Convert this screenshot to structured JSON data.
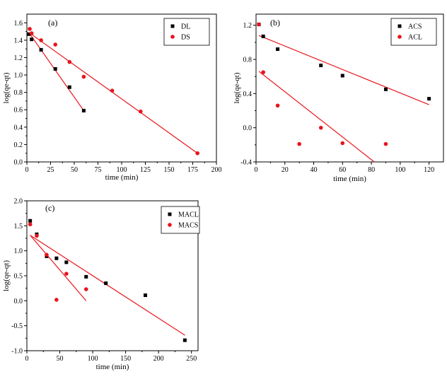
{
  "chart_data": [
    {
      "type": "scatter",
      "panel_label": "(a)",
      "xlabel": "time (min)",
      "ylabel": "log(qe-qt)",
      "xlim": [
        0,
        200
      ],
      "ylim": [
        0,
        1.7
      ],
      "xticks": [
        0,
        25,
        50,
        75,
        100,
        125,
        150,
        175,
        200
      ],
      "yticks": [
        0.0,
        0.2,
        0.4,
        0.6,
        0.8,
        1.0,
        1.2,
        1.4,
        1.6
      ],
      "ytick_labels": [
        "0.0",
        "0.2",
        "0.4",
        "0.6",
        "0.8",
        "1.0",
        "1.2",
        "1.4",
        "1.6"
      ],
      "legend_position": "top-right",
      "series": [
        {
          "name": "DL",
          "marker": "square",
          "color": "#000000",
          "x": [
            2,
            5,
            15,
            30,
            45,
            60
          ],
          "y": [
            1.47,
            1.41,
            1.29,
            1.07,
            0.86,
            0.59
          ],
          "fit": [
            [
              2,
              1.49
            ],
            [
              60,
              0.59
            ]
          ]
        },
        {
          "name": "DS",
          "marker": "circle",
          "color": "#e8141c",
          "x": [
            3,
            5,
            15,
            30,
            45,
            60,
            90,
            120,
            180
          ],
          "y": [
            1.53,
            1.48,
            1.4,
            1.35,
            1.15,
            0.98,
            0.82,
            0.58,
            0.1
          ],
          "fit": [
            [
              2,
              1.49
            ],
            [
              180,
              0.1
            ]
          ]
        }
      ]
    },
    {
      "type": "scatter",
      "panel_label": "(b)",
      "xlabel": "time (min)",
      "ylabel": "log(qe-qt)",
      "xlim": [
        0,
        130
      ],
      "ylim": [
        -0.4,
        1.33
      ],
      "xticks": [
        0,
        20,
        40,
        60,
        80,
        100,
        120
      ],
      "yticks": [
        -0.4,
        0.0,
        0.4,
        0.8,
        1.2
      ],
      "ytick_labels": [
        "-0.4",
        "0.0",
        "0.4",
        "0.8",
        "1.2"
      ],
      "legend_position": "top-right",
      "series": [
        {
          "name": "ACS",
          "marker": "square",
          "color": "#000000",
          "x": [
            2,
            5,
            15,
            45,
            60,
            90,
            120
          ],
          "y": [
            1.21,
            1.07,
            0.92,
            0.73,
            0.61,
            0.45,
            0.34
          ],
          "fit": [
            [
              2,
              1.08
            ],
            [
              120,
              0.27
            ]
          ]
        },
        {
          "name": "ACL",
          "marker": "circle",
          "color": "#e8141c",
          "x": [
            2,
            5,
            15,
            30,
            45,
            60,
            90
          ],
          "y": [
            1.21,
            0.65,
            0.26,
            -0.19,
            0.0,
            -0.18,
            -0.19
          ],
          "fit": [
            [
              2,
              0.66
            ],
            [
              82,
              -0.4
            ]
          ]
        }
      ]
    },
    {
      "type": "scatter",
      "panel_label": "(c)",
      "xlabel": "time (min)",
      "ylabel": "log(qe-qt)",
      "xlim": [
        0,
        260
      ],
      "ylim": [
        -1.0,
        2.0
      ],
      "xticks": [
        0,
        50,
        100,
        150,
        200,
        250
      ],
      "yticks": [
        -1.0,
        -0.5,
        0.0,
        0.5,
        1.0,
        1.5,
        2.0
      ],
      "ytick_labels": [
        "-1.0",
        "-0.5",
        "0.0",
        "0.5",
        "1.0",
        "1.5",
        "2.0"
      ],
      "legend_position": "top-right",
      "series": [
        {
          "name": "MACL",
          "marker": "square",
          "color": "#000000",
          "x": [
            5,
            15,
            30,
            45,
            60,
            90,
            120,
            180,
            240
          ],
          "y": [
            1.6,
            1.33,
            0.89,
            0.85,
            0.77,
            0.48,
            0.35,
            0.11,
            -0.79
          ],
          "fit": [
            [
              5,
              1.31
            ],
            [
              240,
              -0.69
            ]
          ]
        },
        {
          "name": "MACS",
          "marker": "circle",
          "color": "#e8141c",
          "x": [
            5,
            15,
            30,
            45,
            60,
            90
          ],
          "y": [
            1.53,
            1.3,
            0.92,
            0.02,
            0.54,
            0.23
          ],
          "fit": [
            [
              5,
              1.31
            ],
            [
              90,
              0.0
            ]
          ]
        }
      ]
    }
  ]
}
